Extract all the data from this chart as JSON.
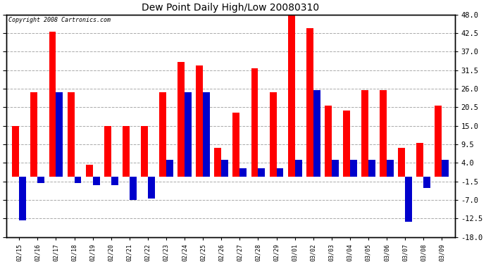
{
  "title": "Dew Point Daily High/Low 20080310",
  "copyright": "Copyright 2008 Cartronics.com",
  "dates": [
    "02/15",
    "02/16",
    "02/17",
    "02/18",
    "02/19",
    "02/20",
    "02/21",
    "02/22",
    "02/23",
    "02/24",
    "02/25",
    "02/26",
    "02/27",
    "02/28",
    "02/29",
    "03/01",
    "03/02",
    "03/03",
    "03/04",
    "03/05",
    "03/06",
    "03/07",
    "03/08",
    "03/09"
  ],
  "highs": [
    15.0,
    25.0,
    43.0,
    25.0,
    3.5,
    15.0,
    15.0,
    15.0,
    25.0,
    34.0,
    33.0,
    8.5,
    19.0,
    32.0,
    25.0,
    48.0,
    44.0,
    21.0,
    19.5,
    25.5,
    25.5,
    8.5,
    10.0,
    21.0
  ],
  "lows": [
    -13.0,
    -2.0,
    25.0,
    -2.0,
    -2.5,
    -2.5,
    -7.0,
    -6.5,
    5.0,
    25.0,
    25.0,
    5.0,
    2.5,
    2.5,
    2.5,
    5.0,
    25.5,
    5.0,
    5.0,
    5.0,
    5.0,
    -13.5,
    -3.5,
    5.0
  ],
  "high_color": "#ff0000",
  "low_color": "#0000cc",
  "bg_color": "#ffffff",
  "grid_color": "#aaaaaa",
  "ylim": [
    -18.0,
    48.0
  ],
  "yticks": [
    -18.0,
    -12.5,
    -7.0,
    -1.5,
    4.0,
    9.5,
    15.0,
    20.5,
    26.0,
    31.5,
    37.0,
    42.5,
    48.0
  ],
  "bar_width": 0.38,
  "figwidth": 6.9,
  "figheight": 3.75,
  "dpi": 100
}
